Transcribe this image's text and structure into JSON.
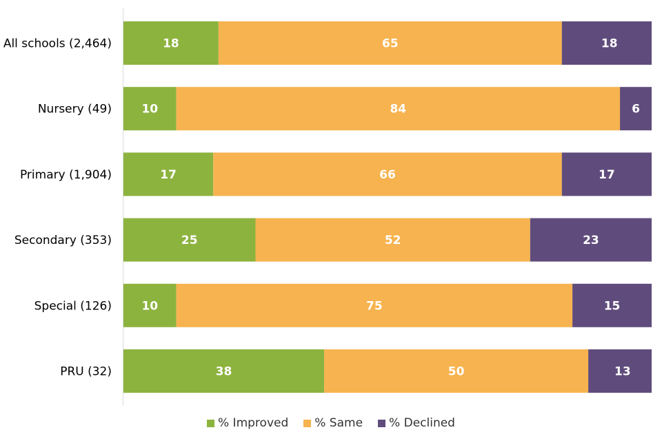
{
  "chart_data": {
    "type": "bar",
    "orientation": "horizontal",
    "stacked": true,
    "categories": [
      "All schools (2,464)",
      "Nursery (49)",
      "Primary (1,904)",
      "Secondary (353)",
      "Special (126)",
      "PRU (32)"
    ],
    "series": [
      {
        "name": "% Improved",
        "color": "#8db33f",
        "values": [
          18,
          10,
          17,
          25,
          10,
          38
        ]
      },
      {
        "name": "% Same",
        "color": "#f7b34f",
        "values": [
          65,
          84,
          66,
          52,
          75,
          50
        ]
      },
      {
        "name": "% Declined",
        "color": "#604c7c",
        "values": [
          18,
          6,
          17,
          23,
          15,
          13
        ]
      }
    ],
    "xlim": [
      0,
      100
    ],
    "grid": false,
    "legend_position": "bottom"
  }
}
